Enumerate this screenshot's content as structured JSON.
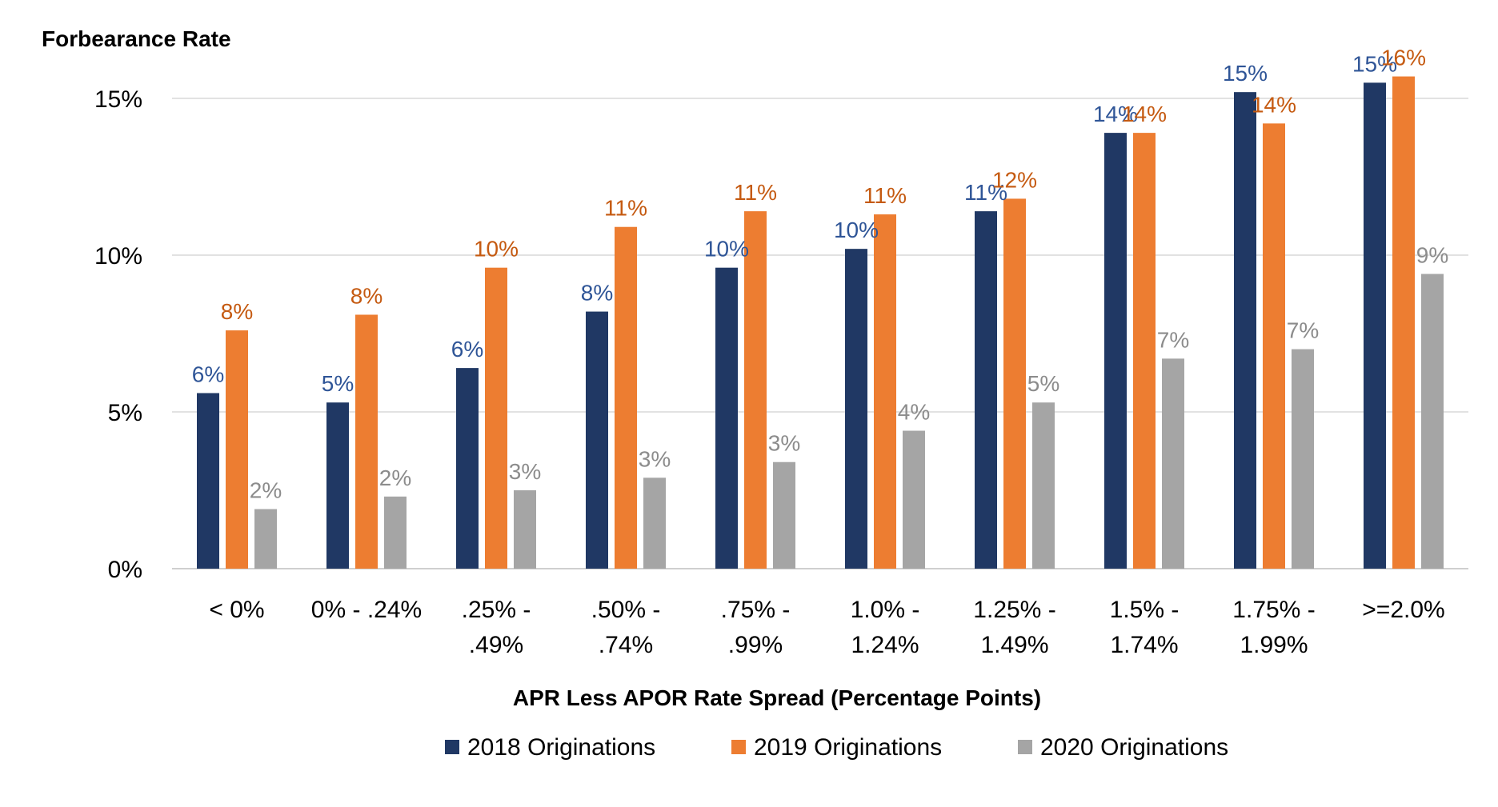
{
  "chart_data": {
    "type": "bar",
    "ylabel": "Forbearance Rate",
    "xlabel": "APR Less APOR Rate Spread (Percentage Points)",
    "ylim": [
      0,
      15
    ],
    "yticks": [
      0,
      5,
      10,
      15
    ],
    "ytick_labels": [
      "0%",
      "5%",
      "10%",
      "15%"
    ],
    "grid": "horizontal",
    "legend_position": "bottom",
    "categories": [
      [
        "< 0%"
      ],
      [
        "0% - .24%"
      ],
      [
        ".25% -",
        ".49%"
      ],
      [
        ".50% -",
        ".74%"
      ],
      [
        ".75% -",
        ".99%"
      ],
      [
        "1.0% -",
        "1.24%"
      ],
      [
        "1.25% -",
        "1.49%"
      ],
      [
        "1.5% -",
        "1.74%"
      ],
      [
        "1.75% -",
        "1.99%"
      ],
      [
        ">=2.0%"
      ]
    ],
    "series": [
      {
        "name": "2018 Originations",
        "color": "#203864",
        "label_color": "#2F5597",
        "values": [
          5.6,
          5.3,
          6.4,
          8.2,
          9.6,
          10.2,
          11.4,
          13.9,
          15.2,
          15.5
        ],
        "labels": [
          "6%",
          "5%",
          "6%",
          "8%",
          "10%",
          "10%",
          "11%",
          "14%",
          "15%",
          "15%"
        ]
      },
      {
        "name": "2019 Originations",
        "color": "#ED7D31",
        "label_color": "#C55A11",
        "values": [
          7.6,
          8.1,
          9.6,
          10.9,
          11.4,
          11.3,
          11.8,
          13.9,
          14.2,
          15.7
        ],
        "labels": [
          "8%",
          "8%",
          "10%",
          "11%",
          "11%",
          "11%",
          "12%",
          "14%",
          "14%",
          "16%"
        ]
      },
      {
        "name": "2020 Originations",
        "color": "#A5A5A5",
        "label_color": "#8C8C8C",
        "values": [
          1.9,
          2.3,
          2.5,
          2.9,
          3.4,
          4.4,
          5.3,
          6.7,
          7.0,
          9.4
        ],
        "labels": [
          "2%",
          "2%",
          "3%",
          "3%",
          "3%",
          "4%",
          "5%",
          "7%",
          "7%",
          "9%"
        ]
      }
    ]
  }
}
